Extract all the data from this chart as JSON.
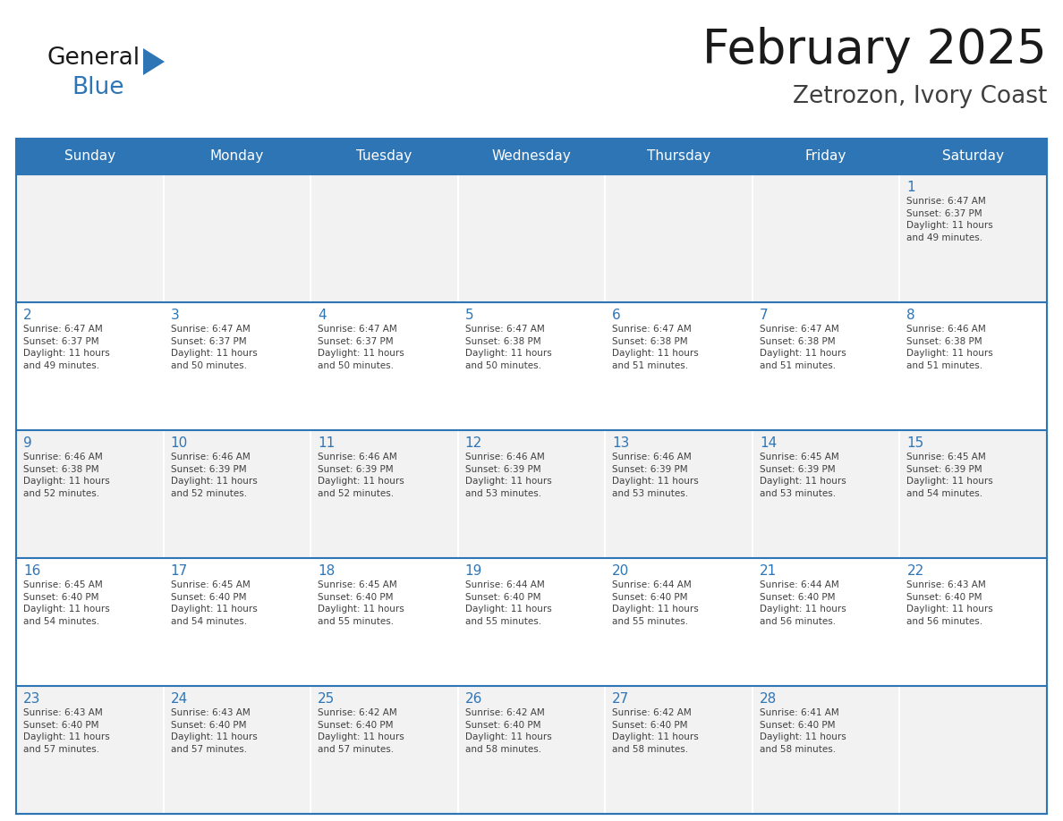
{
  "title": "February 2025",
  "subtitle": "Zetrozon, Ivory Coast",
  "header_bg": "#2E75B6",
  "header_text_color": "#FFFFFF",
  "cell_bg_gray": "#F2F2F2",
  "cell_bg_white": "#FFFFFF",
  "day_number_color": "#2E75B6",
  "info_text_color": "#404040",
  "border_color": "#2E75B6",
  "line_color": "#2E75B6",
  "days_of_week": [
    "Sunday",
    "Monday",
    "Tuesday",
    "Wednesday",
    "Thursday",
    "Friday",
    "Saturday"
  ],
  "weeks": [
    [
      {
        "day": "",
        "info": ""
      },
      {
        "day": "",
        "info": ""
      },
      {
        "day": "",
        "info": ""
      },
      {
        "day": "",
        "info": ""
      },
      {
        "day": "",
        "info": ""
      },
      {
        "day": "",
        "info": ""
      },
      {
        "day": "1",
        "info": "Sunrise: 6:47 AM\nSunset: 6:37 PM\nDaylight: 11 hours\nand 49 minutes."
      }
    ],
    [
      {
        "day": "2",
        "info": "Sunrise: 6:47 AM\nSunset: 6:37 PM\nDaylight: 11 hours\nand 49 minutes."
      },
      {
        "day": "3",
        "info": "Sunrise: 6:47 AM\nSunset: 6:37 PM\nDaylight: 11 hours\nand 50 minutes."
      },
      {
        "day": "4",
        "info": "Sunrise: 6:47 AM\nSunset: 6:37 PM\nDaylight: 11 hours\nand 50 minutes."
      },
      {
        "day": "5",
        "info": "Sunrise: 6:47 AM\nSunset: 6:38 PM\nDaylight: 11 hours\nand 50 minutes."
      },
      {
        "day": "6",
        "info": "Sunrise: 6:47 AM\nSunset: 6:38 PM\nDaylight: 11 hours\nand 51 minutes."
      },
      {
        "day": "7",
        "info": "Sunrise: 6:47 AM\nSunset: 6:38 PM\nDaylight: 11 hours\nand 51 minutes."
      },
      {
        "day": "8",
        "info": "Sunrise: 6:46 AM\nSunset: 6:38 PM\nDaylight: 11 hours\nand 51 minutes."
      }
    ],
    [
      {
        "day": "9",
        "info": "Sunrise: 6:46 AM\nSunset: 6:38 PM\nDaylight: 11 hours\nand 52 minutes."
      },
      {
        "day": "10",
        "info": "Sunrise: 6:46 AM\nSunset: 6:39 PM\nDaylight: 11 hours\nand 52 minutes."
      },
      {
        "day": "11",
        "info": "Sunrise: 6:46 AM\nSunset: 6:39 PM\nDaylight: 11 hours\nand 52 minutes."
      },
      {
        "day": "12",
        "info": "Sunrise: 6:46 AM\nSunset: 6:39 PM\nDaylight: 11 hours\nand 53 minutes."
      },
      {
        "day": "13",
        "info": "Sunrise: 6:46 AM\nSunset: 6:39 PM\nDaylight: 11 hours\nand 53 minutes."
      },
      {
        "day": "14",
        "info": "Sunrise: 6:45 AM\nSunset: 6:39 PM\nDaylight: 11 hours\nand 53 minutes."
      },
      {
        "day": "15",
        "info": "Sunrise: 6:45 AM\nSunset: 6:39 PM\nDaylight: 11 hours\nand 54 minutes."
      }
    ],
    [
      {
        "day": "16",
        "info": "Sunrise: 6:45 AM\nSunset: 6:40 PM\nDaylight: 11 hours\nand 54 minutes."
      },
      {
        "day": "17",
        "info": "Sunrise: 6:45 AM\nSunset: 6:40 PM\nDaylight: 11 hours\nand 54 minutes."
      },
      {
        "day": "18",
        "info": "Sunrise: 6:45 AM\nSunset: 6:40 PM\nDaylight: 11 hours\nand 55 minutes."
      },
      {
        "day": "19",
        "info": "Sunrise: 6:44 AM\nSunset: 6:40 PM\nDaylight: 11 hours\nand 55 minutes."
      },
      {
        "day": "20",
        "info": "Sunrise: 6:44 AM\nSunset: 6:40 PM\nDaylight: 11 hours\nand 55 minutes."
      },
      {
        "day": "21",
        "info": "Sunrise: 6:44 AM\nSunset: 6:40 PM\nDaylight: 11 hours\nand 56 minutes."
      },
      {
        "day": "22",
        "info": "Sunrise: 6:43 AM\nSunset: 6:40 PM\nDaylight: 11 hours\nand 56 minutes."
      }
    ],
    [
      {
        "day": "23",
        "info": "Sunrise: 6:43 AM\nSunset: 6:40 PM\nDaylight: 11 hours\nand 57 minutes."
      },
      {
        "day": "24",
        "info": "Sunrise: 6:43 AM\nSunset: 6:40 PM\nDaylight: 11 hours\nand 57 minutes."
      },
      {
        "day": "25",
        "info": "Sunrise: 6:42 AM\nSunset: 6:40 PM\nDaylight: 11 hours\nand 57 minutes."
      },
      {
        "day": "26",
        "info": "Sunrise: 6:42 AM\nSunset: 6:40 PM\nDaylight: 11 hours\nand 58 minutes."
      },
      {
        "day": "27",
        "info": "Sunrise: 6:42 AM\nSunset: 6:40 PM\nDaylight: 11 hours\nand 58 minutes."
      },
      {
        "day": "28",
        "info": "Sunrise: 6:41 AM\nSunset: 6:40 PM\nDaylight: 11 hours\nand 58 minutes."
      },
      {
        "day": "",
        "info": ""
      }
    ]
  ],
  "logo_general_color": "#1A1A1A",
  "logo_blue_color": "#2E75B6",
  "logo_triangle_color": "#2E75B6",
  "week_row_colors": [
    "#F2F2F2",
    "#FFFFFF",
    "#F2F2F2",
    "#FFFFFF",
    "#F2F2F2"
  ]
}
